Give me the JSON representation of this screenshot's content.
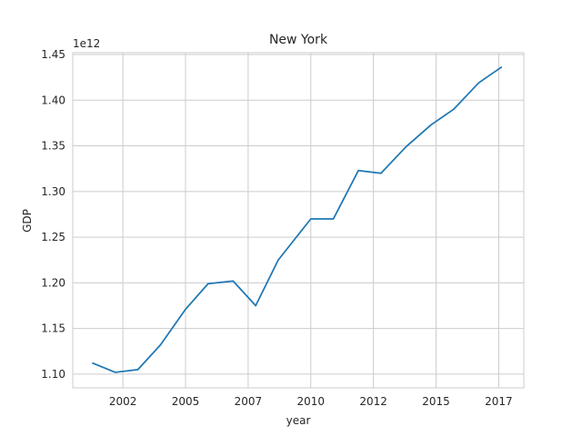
{
  "chart_data": {
    "type": "line",
    "title": "New York",
    "xlabel": "year",
    "ylabel": "GDP",
    "y_offset_label": "1e12",
    "y_scale": 1000000000000.0,
    "xlim": [
      2000.0,
      2018.0
    ],
    "ylim": [
      1.085,
      1.452
    ],
    "x_ticks": [
      {
        "value": 2002.0,
        "label": "2002"
      },
      {
        "value": 2004.5,
        "label": "2005"
      },
      {
        "value": 2007.0,
        "label": "2007"
      },
      {
        "value": 2009.5,
        "label": "2010"
      },
      {
        "value": 2012.0,
        "label": "2012"
      },
      {
        "value": 2014.5,
        "label": "2015"
      },
      {
        "value": 2017.0,
        "label": "2017"
      }
    ],
    "y_ticks": [
      1.1,
      1.15,
      1.2,
      1.25,
      1.3,
      1.35,
      1.4,
      1.45
    ],
    "y_tick_labels": [
      "1.10",
      "1.15",
      "1.20",
      "1.25",
      "1.30",
      "1.35",
      "1.40",
      "1.45"
    ],
    "grid": true,
    "series": [
      {
        "color": "#1f77b4",
        "x": [
          2000.8,
          2001.7,
          2002.6,
          2003.5,
          2004.5,
          2005.4,
          2006.4,
          2007.3,
          2008.2,
          2009.5,
          2010.4,
          2011.4,
          2012.3,
          2013.3,
          2014.3,
          2015.2,
          2016.2,
          2017.1
        ],
        "y": [
          1.112,
          1.102,
          1.105,
          1.132,
          1.171,
          1.199,
          1.202,
          1.175,
          1.225,
          1.27,
          1.27,
          1.323,
          1.32,
          1.349,
          1.373,
          1.39,
          1.419,
          1.436
        ]
      }
    ]
  }
}
